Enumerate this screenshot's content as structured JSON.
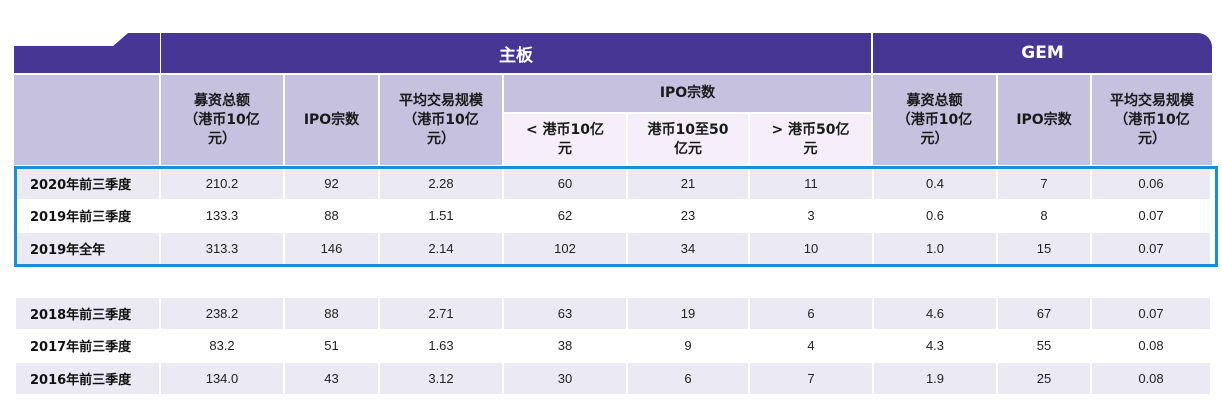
{
  "header": {
    "main_board": "主板",
    "gem": "GEM"
  },
  "columns": {
    "main_funds": "募资总额（港币10亿元）",
    "main_ipo_count": "IPO宗数",
    "main_avg_size": "平均交易规模（港币10亿元）",
    "main_ipo_group": "IPO宗数",
    "sub_lt10": "< 港币10亿元",
    "sub_10to50": "港币10至50亿元",
    "sub_gt50": "> 港币50亿元",
    "gem_funds": "募资总额（港币10亿元）",
    "gem_ipo_count": "IPO宗数",
    "gem_avg_size": "平均交易规模（港币10亿元）"
  },
  "colors": {
    "header_purple": "#483694",
    "header_lavender": "#c5c1de",
    "subheader_pink": "#f6eef8",
    "highlight_border": "#1a8fd6",
    "row_stripe": "#ebe9f3"
  },
  "highlighted_rows": [
    [
      "2020年前三季度",
      "210.2",
      "92",
      "2.28",
      "60",
      "21",
      "11",
      "0.4",
      "7",
      "0.06"
    ],
    [
      "2019年前三季度",
      "133.3",
      "88",
      "1.51",
      "62",
      "23",
      "3",
      "0.6",
      "8",
      "0.07"
    ],
    [
      "2019年全年",
      "313.3",
      "146",
      "2.14",
      "102",
      "34",
      "10",
      "1.0",
      "15",
      "0.07"
    ]
  ],
  "historical_rows": [
    [
      "2018年前三季度",
      "238.2",
      "88",
      "2.71",
      "63",
      "19",
      "6",
      "4.6",
      "67",
      "0.07"
    ],
    [
      "2017年前三季度",
      "83.2",
      "51",
      "1.63",
      "38",
      "9",
      "4",
      "4.3",
      "55",
      "0.08"
    ],
    [
      "2016年前三季度",
      "134.0",
      "43",
      "3.12",
      "30",
      "6",
      "7",
      "1.9",
      "25",
      "0.08"
    ]
  ]
}
